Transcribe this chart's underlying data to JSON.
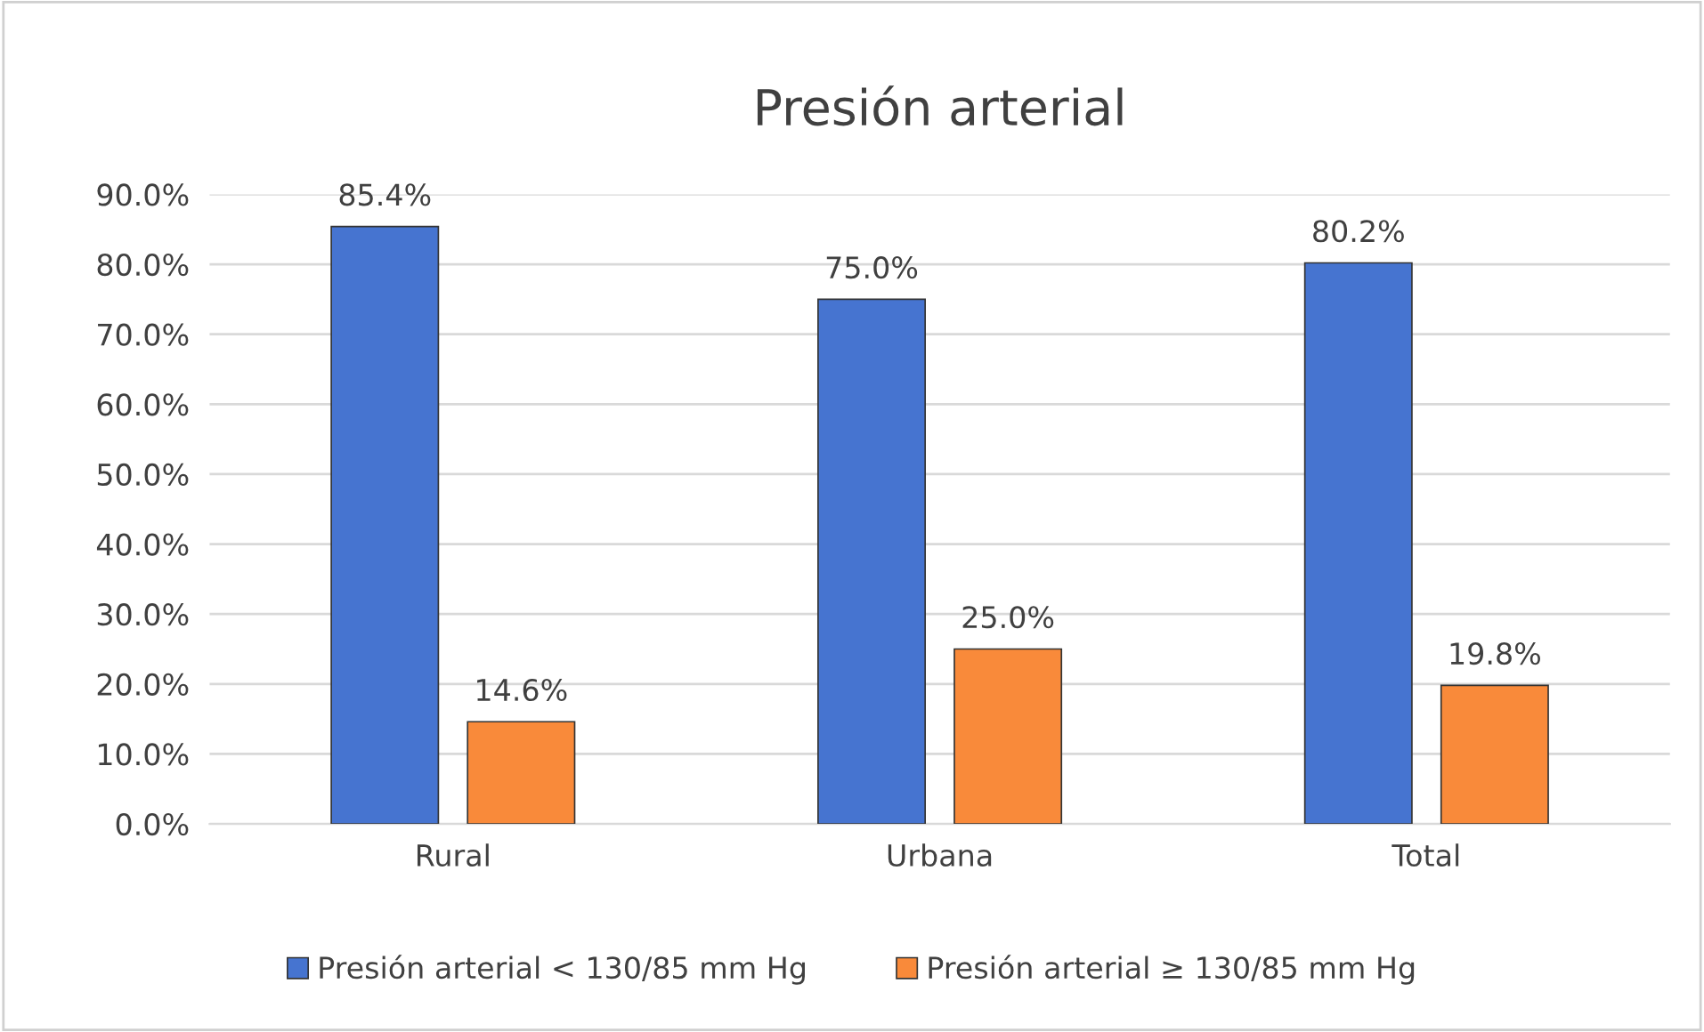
{
  "chart_data": {
    "type": "bar",
    "title": "Presión arterial",
    "categories": [
      "Rural",
      "Urbana",
      "Total"
    ],
    "series": [
      {
        "name": "Presión arterial < 130/85 mm Hg",
        "color": "#4674d0",
        "values": [
          85.4,
          75.0,
          80.2
        ],
        "value_labels": [
          "85.4%",
          "75.0%",
          "80.2%"
        ]
      },
      {
        "name": "Presión arterial ≥ 130/85 mm Hg",
        "color": "#f98a3a",
        "values": [
          14.6,
          25.0,
          19.8
        ],
        "value_labels": [
          "14.6%",
          "25.0%",
          "19.8%"
        ]
      }
    ],
    "ylim": [
      0,
      90
    ],
    "yticks": [
      {
        "value": 0,
        "label": "0.0%"
      },
      {
        "value": 10,
        "label": "10.0%"
      },
      {
        "value": 20,
        "label": "20.0%"
      },
      {
        "value": 30,
        "label": "30.0%"
      },
      {
        "value": 40,
        "label": "40.0%"
      },
      {
        "value": 50,
        "label": "50.0%"
      },
      {
        "value": 60,
        "label": "60.0%"
      },
      {
        "value": 70,
        "label": "70.0%"
      },
      {
        "value": 80,
        "label": "80.0%"
      },
      {
        "value": 90,
        "label": "90.0%"
      }
    ],
    "grid": "y",
    "legend": "bottom"
  }
}
